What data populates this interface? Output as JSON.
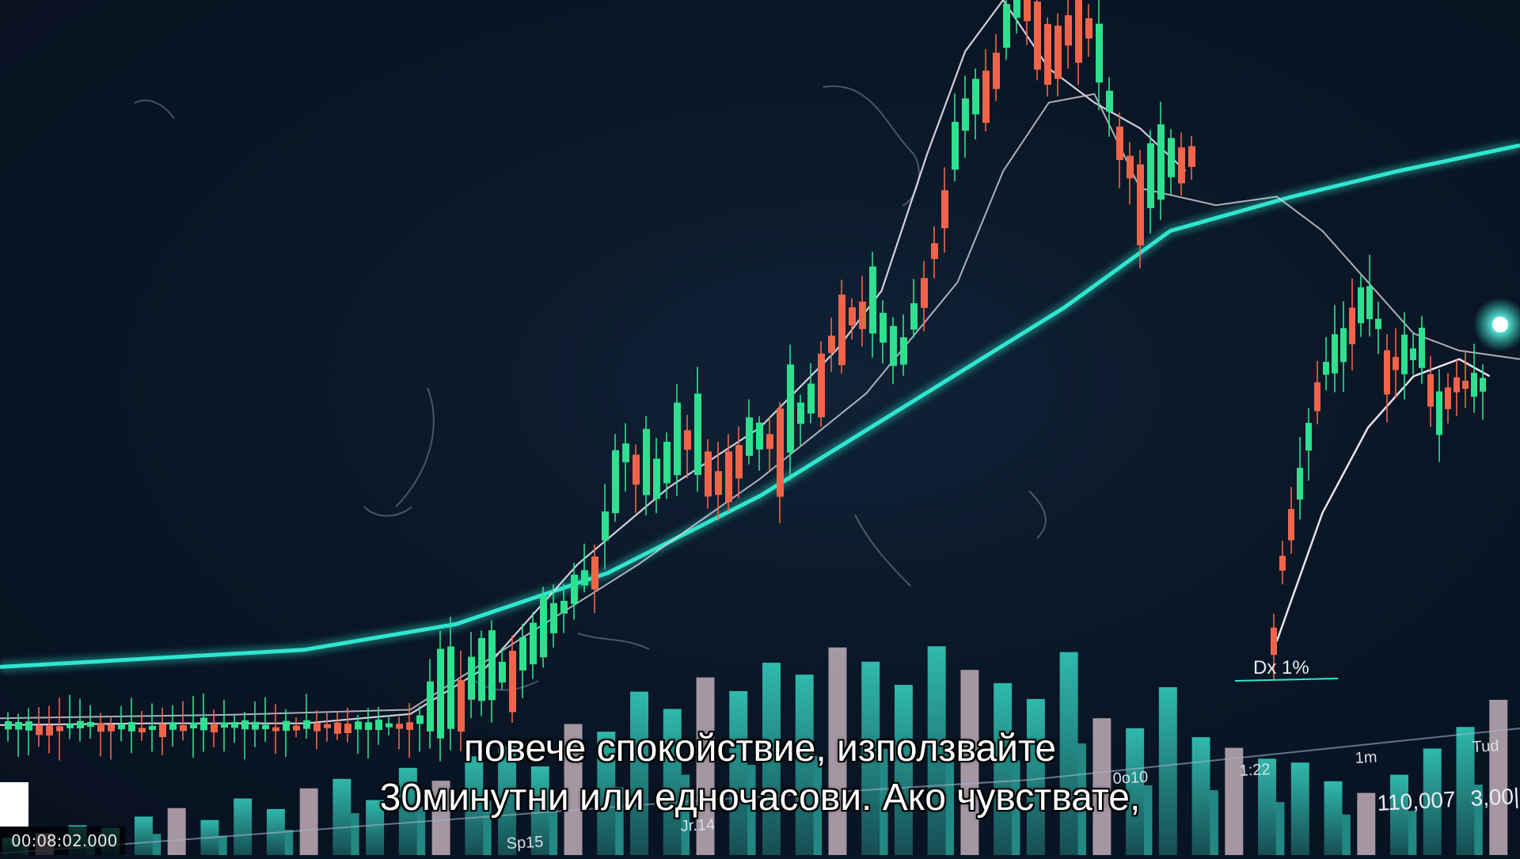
{
  "overlay": {
    "subtitle_line1": "повече спокойствие, използвайте",
    "subtitle_line2": "30минутни или едночасови. Ако чувствате,",
    "timecode": "00:08:02.000"
  },
  "chart_data": {
    "type": "candlestick",
    "colors": {
      "up": "#2fe08f",
      "down": "#f26449",
      "trend": "#2ee6cf",
      "ma": "#e9e2ee",
      "volume": "#36d6c4",
      "volume_alt": "#d9c3cc",
      "background": "#0a1726"
    },
    "annotations": {
      "ticks": [
        "Sp15",
        "Jr.14",
        "0o10",
        "1:22",
        "1m",
        "Tud"
      ],
      "marker_label": "Dx 1%",
      "readout": [
        "110,007",
        "3,00|"
      ]
    },
    "price": [
      [
        0,
        0.85
      ],
      [
        0.03,
        0.852
      ],
      [
        0.06,
        0.848
      ],
      [
        0.09,
        0.853
      ],
      [
        0.12,
        0.85
      ],
      [
        0.15,
        0.849
      ],
      [
        0.18,
        0.852
      ],
      [
        0.21,
        0.848
      ],
      [
        0.24,
        0.851
      ],
      [
        0.27,
        0.847
      ],
      [
        0.29,
        0.83
      ],
      [
        0.31,
        0.8
      ],
      [
        0.33,
        0.79
      ],
      [
        0.35,
        0.76
      ],
      [
        0.37,
        0.71
      ],
      [
        0.39,
        0.66
      ],
      [
        0.41,
        0.53
      ],
      [
        0.43,
        0.57
      ],
      [
        0.45,
        0.51
      ],
      [
        0.47,
        0.56
      ],
      [
        0.49,
        0.52
      ],
      [
        0.51,
        0.51
      ],
      [
        0.53,
        0.48
      ],
      [
        0.55,
        0.37
      ],
      [
        0.57,
        0.36
      ],
      [
        0.59,
        0.43
      ],
      [
        0.61,
        0.31
      ],
      [
        0.63,
        0.15
      ],
      [
        0.65,
        0.09
      ],
      [
        0.67,
        -0.01
      ],
      [
        0.69,
        0.06
      ],
      [
        0.71,
        0.0
      ],
      [
        0.73,
        0.14
      ],
      [
        0.75,
        0.23
      ],
      [
        0.77,
        0.19
      ],
      [
        0.79,
        0.17
      ],
      [
        0.81,
        0.22
      ],
      [
        0.83,
        0.26
      ],
      [
        0.85,
        0.17
      ],
      [
        0.87,
        0.23
      ],
      [
        0.89,
        0.28
      ],
      [
        0.91,
        0.27
      ],
      [
        0.93,
        0.31
      ],
      [
        0.95,
        0.37
      ],
      [
        0.97,
        0.41
      ],
      [
        1.0,
        0.42
      ]
    ],
    "segment2": [
      [
        0.0,
        0.75
      ],
      [
        0.05,
        0.64
      ],
      [
        0.1,
        0.6
      ],
      [
        0.15,
        0.53
      ],
      [
        0.2,
        0.47
      ],
      [
        0.25,
        0.43
      ],
      [
        0.3,
        0.41
      ],
      [
        0.35,
        0.4
      ],
      [
        0.4,
        0.36
      ],
      [
        0.45,
        0.35
      ],
      [
        0.5,
        0.38
      ],
      [
        0.55,
        0.45
      ],
      [
        0.6,
        0.41
      ],
      [
        0.65,
        0.42
      ],
      [
        0.7,
        0.4
      ],
      [
        0.75,
        0.46
      ],
      [
        0.8,
        0.49
      ],
      [
        0.85,
        0.45
      ]
    ],
    "ma_fast": [
      [
        0,
        0.848
      ],
      [
        0.1,
        0.846
      ],
      [
        0.2,
        0.846
      ],
      [
        0.27,
        0.835
      ],
      [
        0.32,
        0.78
      ],
      [
        0.38,
        0.66
      ],
      [
        0.44,
        0.57
      ],
      [
        0.5,
        0.5
      ],
      [
        0.55,
        0.41
      ],
      [
        0.58,
        0.34
      ],
      [
        0.61,
        0.18
      ],
      [
        0.635,
        0.06
      ],
      [
        0.66,
        0.0
      ],
      [
        0.69,
        0.08
      ],
      [
        0.72,
        0.12
      ],
      [
        0.75,
        0.15
      ],
      [
        0.78,
        0.2
      ]
    ],
    "ma_slow": [
      [
        0,
        0.84
      ],
      [
        0.15,
        0.836
      ],
      [
        0.27,
        0.83
      ],
      [
        0.34,
        0.75
      ],
      [
        0.42,
        0.66
      ],
      [
        0.5,
        0.56
      ],
      [
        0.57,
        0.46
      ],
      [
        0.63,
        0.33
      ],
      [
        0.66,
        0.2
      ],
      [
        0.69,
        0.12
      ],
      [
        0.72,
        0.11
      ],
      [
        0.75,
        0.22
      ],
      [
        0.8,
        0.24
      ],
      [
        0.84,
        0.23
      ],
      [
        0.87,
        0.27
      ],
      [
        0.9,
        0.33
      ],
      [
        0.93,
        0.39
      ],
      [
        0.96,
        0.41
      ],
      [
        1.0,
        0.42
      ]
    ],
    "ma_tail": [
      [
        0.84,
        0.75
      ],
      [
        0.87,
        0.6
      ],
      [
        0.9,
        0.5
      ],
      [
        0.93,
        0.44
      ],
      [
        0.96,
        0.42
      ],
      [
        0.98,
        0.44
      ]
    ],
    "trend": [
      [
        0,
        0.78
      ],
      [
        0.2,
        0.76
      ],
      [
        0.3,
        0.73
      ],
      [
        0.4,
        0.67
      ],
      [
        0.5,
        0.58
      ],
      [
        0.6,
        0.47
      ],
      [
        0.7,
        0.36
      ],
      [
        0.77,
        0.27
      ],
      [
        0.85,
        0.23
      ],
      [
        0.92,
        0.2
      ],
      [
        1.0,
        0.17
      ]
    ],
    "volume": [
      0.12,
      0.15,
      0.2,
      0.18,
      0.25,
      0.3,
      0.22,
      0.35,
      0.28,
      0.4,
      0.45,
      0.32,
      0.5,
      0.42,
      0.55,
      0.6,
      0.48,
      0.7,
      0.65,
      0.85,
      0.75,
      0.9,
      0.82,
      0.95,
      0.88,
      1.0,
      0.92,
      0.8,
      0.97,
      0.85,
      0.78,
      0.7,
      0.9,
      0.6,
      0.55,
      0.72,
      0.5,
      0.45,
      0.4,
      0.38,
      0.3,
      0.25,
      0.32,
      0.42,
      0.5,
      0.6
    ]
  }
}
